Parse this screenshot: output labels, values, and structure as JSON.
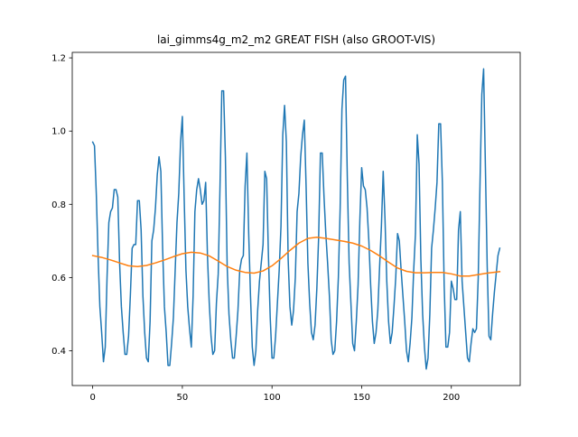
{
  "chart_data": {
    "type": "line",
    "title": "lai_gimms4g_m2_m2 GREAT FISH (also GROOT-VIS)",
    "xlabel": "",
    "ylabel": "",
    "xlim": [
      -11.4,
      238.4
    ],
    "ylim": [
      0.305,
      1.215
    ],
    "x_ticks": [
      0,
      50,
      100,
      150,
      200
    ],
    "y_ticks": [
      0.4,
      0.6,
      0.8,
      1.0,
      1.2
    ],
    "x_tick_labels": [
      "0",
      "50",
      "100",
      "150",
      "200"
    ],
    "y_tick_labels": [
      "0.4",
      "0.6",
      "0.8",
      "1.0",
      "1.2"
    ],
    "grid": false,
    "legend": "none",
    "series": [
      {
        "color": "#1f77b4",
        "points": [
          [
            0,
            0.97
          ],
          [
            1,
            0.96
          ],
          [
            2,
            0.83
          ],
          [
            3,
            0.66
          ],
          [
            4,
            0.52
          ],
          [
            5,
            0.45
          ],
          [
            6,
            0.37
          ],
          [
            7,
            0.41
          ],
          [
            8,
            0.6
          ],
          [
            9,
            0.75
          ],
          [
            10,
            0.78
          ],
          [
            11,
            0.79
          ],
          [
            12,
            0.84
          ],
          [
            13,
            0.84
          ],
          [
            14,
            0.82
          ],
          [
            15,
            0.64
          ],
          [
            16,
            0.52
          ],
          [
            17,
            0.45
          ],
          [
            18,
            0.39
          ],
          [
            19,
            0.39
          ],
          [
            20,
            0.44
          ],
          [
            21,
            0.55
          ],
          [
            22,
            0.68
          ],
          [
            23,
            0.69
          ],
          [
            24,
            0.69
          ],
          [
            25,
            0.81
          ],
          [
            26,
            0.81
          ],
          [
            27,
            0.73
          ],
          [
            28,
            0.55
          ],
          [
            29,
            0.45
          ],
          [
            30,
            0.38
          ],
          [
            31,
            0.37
          ],
          [
            32,
            0.48
          ],
          [
            33,
            0.7
          ],
          [
            34,
            0.73
          ],
          [
            35,
            0.79
          ],
          [
            36,
            0.88
          ],
          [
            37,
            0.93
          ],
          [
            38,
            0.89
          ],
          [
            39,
            0.68
          ],
          [
            40,
            0.52
          ],
          [
            41,
            0.45
          ],
          [
            42,
            0.36
          ],
          [
            43,
            0.36
          ],
          [
            44,
            0.42
          ],
          [
            45,
            0.49
          ],
          [
            46,
            0.62
          ],
          [
            47,
            0.75
          ],
          [
            48,
            0.83
          ],
          [
            49,
            0.97
          ],
          [
            50,
            1.04
          ],
          [
            51,
            0.82
          ],
          [
            52,
            0.62
          ],
          [
            53,
            0.52
          ],
          [
            54,
            0.46
          ],
          [
            55,
            0.41
          ],
          [
            56,
            0.55
          ],
          [
            57,
            0.78
          ],
          [
            58,
            0.84
          ],
          [
            59,
            0.87
          ],
          [
            60,
            0.84
          ],
          [
            61,
            0.8
          ],
          [
            62,
            0.81
          ],
          [
            63,
            0.86
          ],
          [
            64,
            0.66
          ],
          [
            65,
            0.53
          ],
          [
            66,
            0.44
          ],
          [
            67,
            0.39
          ],
          [
            68,
            0.4
          ],
          [
            69,
            0.53
          ],
          [
            70,
            0.61
          ],
          [
            71,
            0.85
          ],
          [
            72,
            1.11
          ],
          [
            73,
            1.11
          ],
          [
            74,
            0.93
          ],
          [
            75,
            0.63
          ],
          [
            76,
            0.5
          ],
          [
            77,
            0.43
          ],
          [
            78,
            0.38
          ],
          [
            79,
            0.38
          ],
          [
            80,
            0.44
          ],
          [
            81,
            0.51
          ],
          [
            82,
            0.62
          ],
          [
            83,
            0.65
          ],
          [
            84,
            0.66
          ],
          [
            85,
            0.85
          ],
          [
            86,
            0.94
          ],
          [
            87,
            0.72
          ],
          [
            88,
            0.55
          ],
          [
            89,
            0.41
          ],
          [
            90,
            0.36
          ],
          [
            91,
            0.4
          ],
          [
            92,
            0.51
          ],
          [
            93,
            0.59
          ],
          [
            94,
            0.64
          ],
          [
            95,
            0.69
          ],
          [
            96,
            0.89
          ],
          [
            97,
            0.87
          ],
          [
            98,
            0.66
          ],
          [
            99,
            0.49
          ],
          [
            100,
            0.38
          ],
          [
            101,
            0.38
          ],
          [
            102,
            0.44
          ],
          [
            103,
            0.53
          ],
          [
            104,
            0.62
          ],
          [
            105,
            0.74
          ],
          [
            106,
            0.99
          ],
          [
            107,
            1.07
          ],
          [
            108,
            0.97
          ],
          [
            109,
            0.65
          ],
          [
            110,
            0.52
          ],
          [
            111,
            0.47
          ],
          [
            112,
            0.51
          ],
          [
            113,
            0.6
          ],
          [
            114,
            0.78
          ],
          [
            115,
            0.83
          ],
          [
            116,
            0.93
          ],
          [
            117,
            0.99
          ],
          [
            118,
            1.03
          ],
          [
            119,
            0.85
          ],
          [
            120,
            0.64
          ],
          [
            121,
            0.53
          ],
          [
            122,
            0.45
          ],
          [
            123,
            0.43
          ],
          [
            124,
            0.47
          ],
          [
            125,
            0.57
          ],
          [
            126,
            0.71
          ],
          [
            127,
            0.94
          ],
          [
            128,
            0.94
          ],
          [
            129,
            0.82
          ],
          [
            130,
            0.72
          ],
          [
            131,
            0.64
          ],
          [
            132,
            0.55
          ],
          [
            133,
            0.43
          ],
          [
            134,
            0.39
          ],
          [
            135,
            0.4
          ],
          [
            136,
            0.48
          ],
          [
            137,
            0.6
          ],
          [
            138,
            0.79
          ],
          [
            139,
            1.06
          ],
          [
            140,
            1.14
          ],
          [
            141,
            1.15
          ],
          [
            142,
            0.87
          ],
          [
            143,
            0.64
          ],
          [
            144,
            0.53
          ],
          [
            145,
            0.42
          ],
          [
            146,
            0.4
          ],
          [
            147,
            0.48
          ],
          [
            148,
            0.58
          ],
          [
            149,
            0.76
          ],
          [
            150,
            0.9
          ],
          [
            151,
            0.85
          ],
          [
            152,
            0.84
          ],
          [
            153,
            0.79
          ],
          [
            154,
            0.7
          ],
          [
            155,
            0.58
          ],
          [
            156,
            0.48
          ],
          [
            157,
            0.42
          ],
          [
            158,
            0.45
          ],
          [
            159,
            0.51
          ],
          [
            160,
            0.63
          ],
          [
            161,
            0.74
          ],
          [
            162,
            0.89
          ],
          [
            163,
            0.76
          ],
          [
            164,
            0.59
          ],
          [
            165,
            0.48
          ],
          [
            166,
            0.42
          ],
          [
            167,
            0.45
          ],
          [
            168,
            0.52
          ],
          [
            169,
            0.6
          ],
          [
            170,
            0.72
          ],
          [
            171,
            0.7
          ],
          [
            172,
            0.62
          ],
          [
            173,
            0.55
          ],
          [
            174,
            0.48
          ],
          [
            175,
            0.4
          ],
          [
            176,
            0.37
          ],
          [
            177,
            0.42
          ],
          [
            178,
            0.49
          ],
          [
            179,
            0.62
          ],
          [
            180,
            0.72
          ],
          [
            181,
            0.99
          ],
          [
            182,
            0.91
          ],
          [
            183,
            0.65
          ],
          [
            184,
            0.5
          ],
          [
            185,
            0.41
          ],
          [
            186,
            0.35
          ],
          [
            187,
            0.38
          ],
          [
            188,
            0.5
          ],
          [
            189,
            0.68
          ],
          [
            190,
            0.73
          ],
          [
            191,
            0.79
          ],
          [
            192,
            0.86
          ],
          [
            193,
            1.02
          ],
          [
            194,
            1.02
          ],
          [
            195,
            0.86
          ],
          [
            196,
            0.58
          ],
          [
            197,
            0.41
          ],
          [
            198,
            0.41
          ],
          [
            199,
            0.45
          ],
          [
            200,
            0.59
          ],
          [
            201,
            0.57
          ],
          [
            202,
            0.54
          ],
          [
            203,
            0.54
          ],
          [
            204,
            0.73
          ],
          [
            205,
            0.78
          ],
          [
            206,
            0.59
          ],
          [
            207,
            0.52
          ],
          [
            208,
            0.45
          ],
          [
            209,
            0.38
          ],
          [
            210,
            0.37
          ],
          [
            211,
            0.42
          ],
          [
            212,
            0.46
          ],
          [
            213,
            0.45
          ],
          [
            214,
            0.46
          ],
          [
            215,
            0.6
          ],
          [
            216,
            0.86
          ],
          [
            217,
            1.1
          ],
          [
            218,
            1.17
          ],
          [
            219,
            0.9
          ],
          [
            220,
            0.63
          ],
          [
            221,
            0.44
          ],
          [
            222,
            0.43
          ],
          [
            223,
            0.5
          ],
          [
            224,
            0.56
          ],
          [
            225,
            0.61
          ],
          [
            226,
            0.66
          ],
          [
            227,
            0.68
          ]
        ]
      },
      {
        "color": "#ff7f0e",
        "points": [
          [
            0,
            0.66
          ],
          [
            5,
            0.655
          ],
          [
            10,
            0.648
          ],
          [
            15,
            0.64
          ],
          [
            20,
            0.632
          ],
          [
            25,
            0.63
          ],
          [
            30,
            0.633
          ],
          [
            35,
            0.64
          ],
          [
            40,
            0.648
          ],
          [
            45,
            0.657
          ],
          [
            50,
            0.665
          ],
          [
            55,
            0.669
          ],
          [
            60,
            0.667
          ],
          [
            65,
            0.659
          ],
          [
            70,
            0.645
          ],
          [
            75,
            0.63
          ],
          [
            80,
            0.62
          ],
          [
            85,
            0.614
          ],
          [
            90,
            0.612
          ],
          [
            95,
            0.618
          ],
          [
            100,
            0.632
          ],
          [
            105,
            0.652
          ],
          [
            110,
            0.674
          ],
          [
            115,
            0.694
          ],
          [
            120,
            0.707
          ],
          [
            125,
            0.71
          ],
          [
            130,
            0.707
          ],
          [
            135,
            0.703
          ],
          [
            140,
            0.699
          ],
          [
            145,
            0.694
          ],
          [
            150,
            0.686
          ],
          [
            155,
            0.674
          ],
          [
            160,
            0.659
          ],
          [
            165,
            0.642
          ],
          [
            170,
            0.626
          ],
          [
            175,
            0.617
          ],
          [
            180,
            0.613
          ],
          [
            185,
            0.613
          ],
          [
            190,
            0.614
          ],
          [
            195,
            0.614
          ],
          [
            200,
            0.61
          ],
          [
            205,
            0.604
          ],
          [
            210,
            0.604
          ],
          [
            215,
            0.608
          ],
          [
            220,
            0.612
          ],
          [
            227,
            0.616
          ]
        ]
      }
    ]
  }
}
